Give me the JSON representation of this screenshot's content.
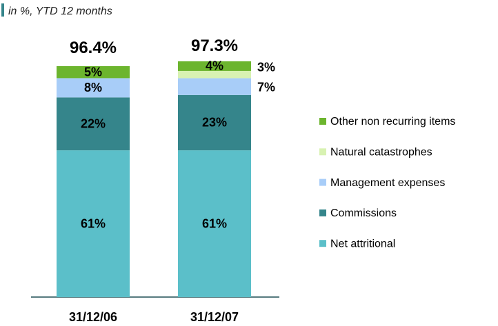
{
  "chart_data": {
    "type": "stacked_bar",
    "subtitle": "in %, YTD 12 months",
    "categories": [
      "31/12/06",
      "31/12/07"
    ],
    "series": [
      {
        "name": "Net attritional",
        "color": "#5bbfc9",
        "values": [
          61,
          61
        ],
        "value_labels": [
          "61%",
          "61%"
        ]
      },
      {
        "name": "Commissions",
        "color": "#35858b",
        "values": [
          22,
          23
        ],
        "value_labels": [
          "22%",
          "23%"
        ]
      },
      {
        "name": "Management expenses",
        "color": "#a8cdf8",
        "values": [
          8,
          7
        ],
        "value_labels": [
          "8%",
          "7%"
        ]
      },
      {
        "name": "Natural catastrophes",
        "color": "#d8f2b2",
        "values": [
          null,
          3
        ],
        "value_labels": [
          null,
          "3%"
        ]
      },
      {
        "name": "Other non recurring items",
        "color": "#6cb52e",
        "values": [
          5,
          4
        ],
        "value_labels": [
          "5%",
          "4%"
        ]
      }
    ],
    "totals": [
      96.4,
      97.3
    ],
    "total_labels": [
      "96.4%",
      "97.3%"
    ],
    "ylim": [
      0,
      100
    ]
  }
}
